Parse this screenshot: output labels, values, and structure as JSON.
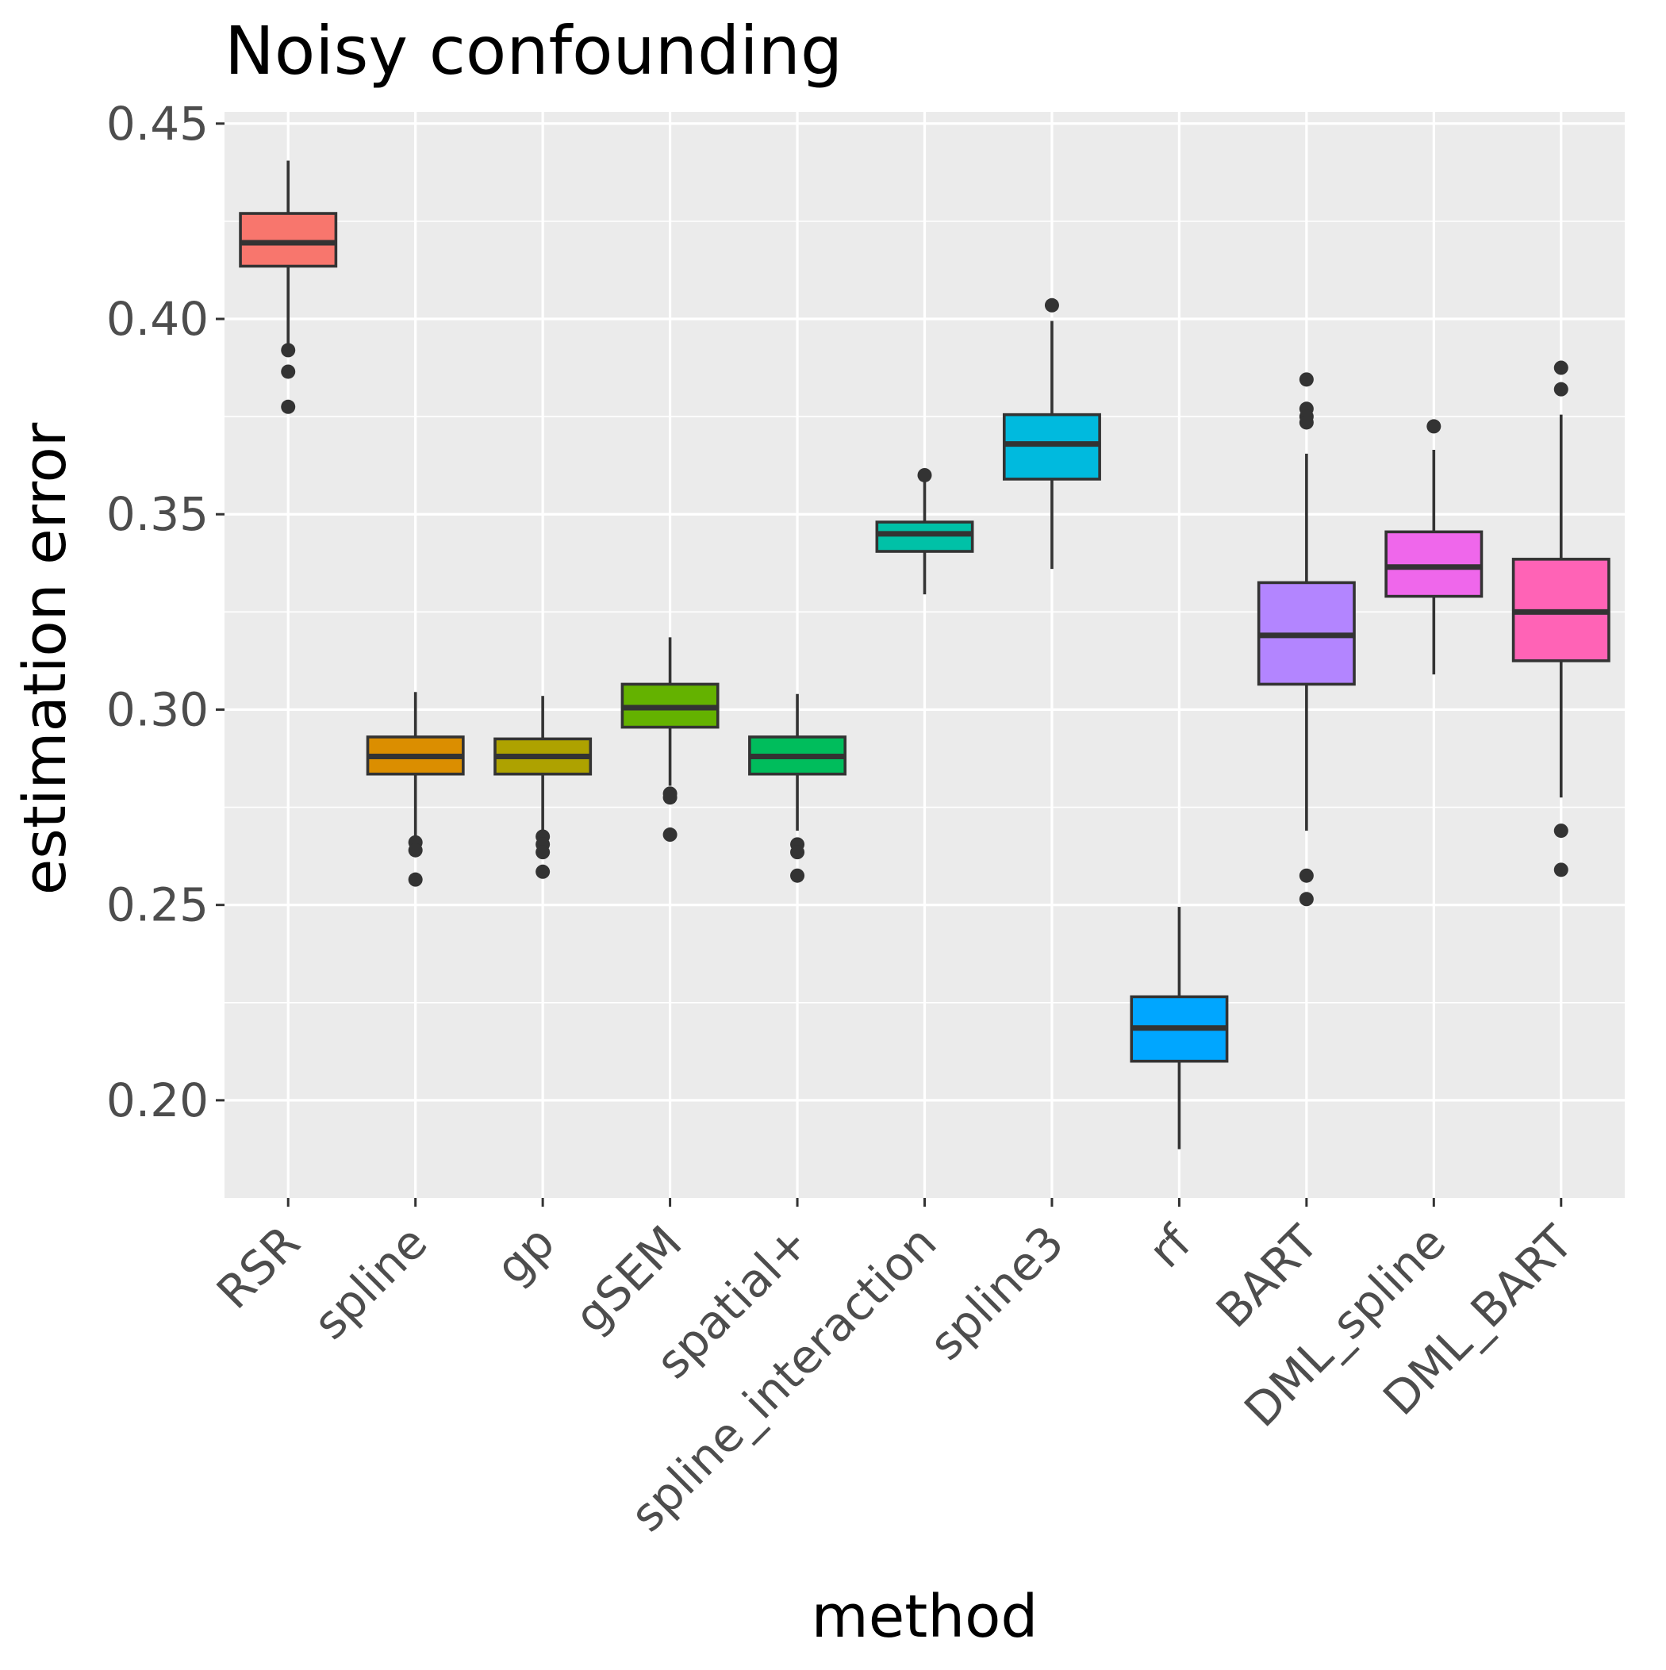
{
  "chart_data": {
    "type": "boxplot",
    "title": "Noisy confounding",
    "xlabel": "method",
    "ylabel": "estimation error",
    "ylim": [
      0.175,
      0.453
    ],
    "yticks": [
      0.2,
      0.25,
      0.3,
      0.35,
      0.4,
      0.45
    ],
    "ytick_labels": [
      "0.20",
      "0.25",
      "0.30",
      "0.35",
      "0.40",
      "0.45"
    ],
    "grid": true,
    "legend": "none",
    "categories": [
      "RSR",
      "spline",
      "gp",
      "gSEM",
      "spatial+",
      "spline_interaction",
      "spline3",
      "rf",
      "BART",
      "DML_spline",
      "DML_BART"
    ],
    "boxes": [
      {
        "label": "RSR",
        "color": "#F8766D",
        "whisker_low": 0.393,
        "q1": 0.4135,
        "median": 0.4195,
        "q3": 0.427,
        "whisker_high": 0.4405,
        "outliers": [
          0.392,
          0.3865,
          0.3775
        ]
      },
      {
        "label": "spline",
        "color": "#DB8E00",
        "whisker_low": 0.267,
        "q1": 0.2835,
        "median": 0.288,
        "q3": 0.293,
        "whisker_high": 0.3045,
        "outliers": [
          0.266,
          0.264,
          0.2565
        ]
      },
      {
        "label": "gp",
        "color": "#AEA200",
        "whisker_low": 0.2685,
        "q1": 0.2835,
        "median": 0.288,
        "q3": 0.2925,
        "whisker_high": 0.3035,
        "outliers": [
          0.2675,
          0.2655,
          0.2635,
          0.2585
        ]
      },
      {
        "label": "gSEM",
        "color": "#64B200",
        "whisker_low": 0.2805,
        "q1": 0.2955,
        "median": 0.3005,
        "q3": 0.3065,
        "whisker_high": 0.3185,
        "outliers": [
          0.2785,
          0.2775,
          0.268
        ]
      },
      {
        "label": "spatial+",
        "color": "#00BD5C",
        "whisker_low": 0.269,
        "q1": 0.2835,
        "median": 0.288,
        "q3": 0.293,
        "whisker_high": 0.304,
        "outliers": [
          0.2655,
          0.2635,
          0.2575
        ]
      },
      {
        "label": "spline_interaction",
        "color": "#00C1A7",
        "whisker_low": 0.3295,
        "q1": 0.3405,
        "median": 0.345,
        "q3": 0.348,
        "whisker_high": 0.3585,
        "outliers": [
          0.36
        ]
      },
      {
        "label": "spline3",
        "color": "#00BADE",
        "whisker_low": 0.336,
        "q1": 0.359,
        "median": 0.368,
        "q3": 0.3755,
        "whisker_high": 0.3995,
        "outliers": [
          0.4035
        ]
      },
      {
        "label": "rf",
        "color": "#00A6FF",
        "whisker_low": 0.1875,
        "q1": 0.21,
        "median": 0.2185,
        "q3": 0.2265,
        "whisker_high": 0.2495,
        "outliers": []
      },
      {
        "label": "BART",
        "color": "#B385FF",
        "whisker_low": 0.269,
        "q1": 0.3065,
        "median": 0.319,
        "q3": 0.3325,
        "whisker_high": 0.3655,
        "outliers": [
          0.3845,
          0.377,
          0.375,
          0.3735,
          0.2575,
          0.2515
        ]
      },
      {
        "label": "DML_spline",
        "color": "#EF67EB",
        "whisker_low": 0.309,
        "q1": 0.329,
        "median": 0.3365,
        "q3": 0.3455,
        "whisker_high": 0.3665,
        "outliers": [
          0.3725
        ]
      },
      {
        "label": "DML_BART",
        "color": "#FF63B6",
        "whisker_low": 0.2775,
        "q1": 0.3125,
        "median": 0.325,
        "q3": 0.3385,
        "whisker_high": 0.3755,
        "outliers": [
          0.3875,
          0.382,
          0.269,
          0.259
        ]
      }
    ]
  }
}
